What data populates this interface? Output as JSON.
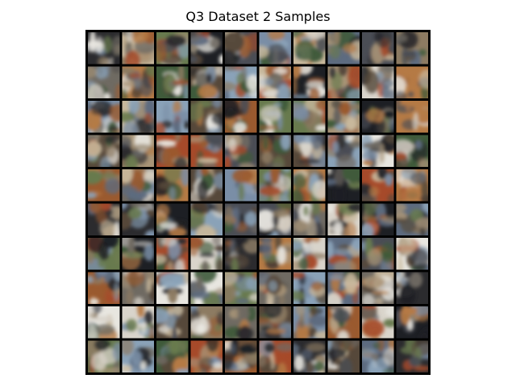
{
  "figure": {
    "title": "Q3 Dataset 2 Samples"
  },
  "grid": {
    "rows": 10,
    "cols": 10,
    "border_color": "#000000",
    "background_color": "#ffffff"
  },
  "palette": [
    "#2b2b2e",
    "#4a4d55",
    "#6f6a62",
    "#8d7b62",
    "#a89477",
    "#c8b89c",
    "#d9d4cb",
    "#7a8ea6",
    "#5d6b80",
    "#9a5a2f",
    "#b57a45",
    "#3f5a3a",
    "#687a4e",
    "#e8e6e0",
    "#1d1f24",
    "#a64a2a",
    "#8aa2b8",
    "#56483a"
  ]
}
